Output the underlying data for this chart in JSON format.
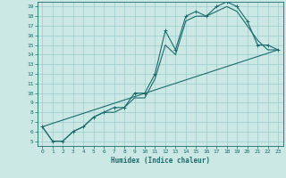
{
  "title": "",
  "xlabel": "Humidex (Indice chaleur)",
  "bg_color": "#cce8e4",
  "grid_color": "#99cccc",
  "line_color": "#1a6b6b",
  "xlim": [
    -0.5,
    23.5
  ],
  "ylim": [
    4.5,
    19.5
  ],
  "xticks": [
    0,
    1,
    2,
    3,
    4,
    5,
    6,
    7,
    8,
    9,
    10,
    11,
    12,
    13,
    14,
    15,
    16,
    17,
    18,
    19,
    20,
    21,
    22,
    23
  ],
  "yticks": [
    5,
    6,
    7,
    8,
    9,
    10,
    11,
    12,
    13,
    14,
    15,
    16,
    17,
    18,
    19
  ],
  "curves": [
    {
      "x": [
        0,
        1,
        2,
        3,
        4,
        5,
        6,
        7,
        8,
        9,
        10,
        11,
        12,
        13,
        14,
        15,
        16,
        17,
        18,
        19,
        20,
        21,
        22,
        23
      ],
      "y": [
        6.5,
        5.0,
        5.0,
        6.0,
        6.5,
        7.5,
        8.0,
        8.5,
        8.5,
        10.0,
        10.0,
        12.0,
        16.5,
        14.5,
        18.0,
        18.5,
        18.0,
        19.0,
        19.5,
        19.0,
        17.5,
        15.0,
        15.0,
        14.5
      ],
      "markers": true
    },
    {
      "x": [
        0,
        1,
        2,
        3,
        4,
        5,
        6,
        7,
        8,
        9,
        10,
        11,
        12,
        13,
        14,
        15,
        16,
        17,
        18,
        19,
        20,
        21,
        22,
        23
      ],
      "y": [
        6.5,
        5.0,
        5.0,
        6.0,
        6.5,
        7.5,
        8.0,
        8.0,
        8.5,
        9.5,
        9.5,
        11.5,
        15.0,
        14.0,
        17.5,
        18.0,
        18.0,
        18.5,
        19.0,
        18.5,
        17.0,
        15.5,
        14.5,
        14.5
      ],
      "markers": false
    },
    {
      "x": [
        0,
        23
      ],
      "y": [
        6.5,
        14.5
      ],
      "markers": false
    }
  ]
}
